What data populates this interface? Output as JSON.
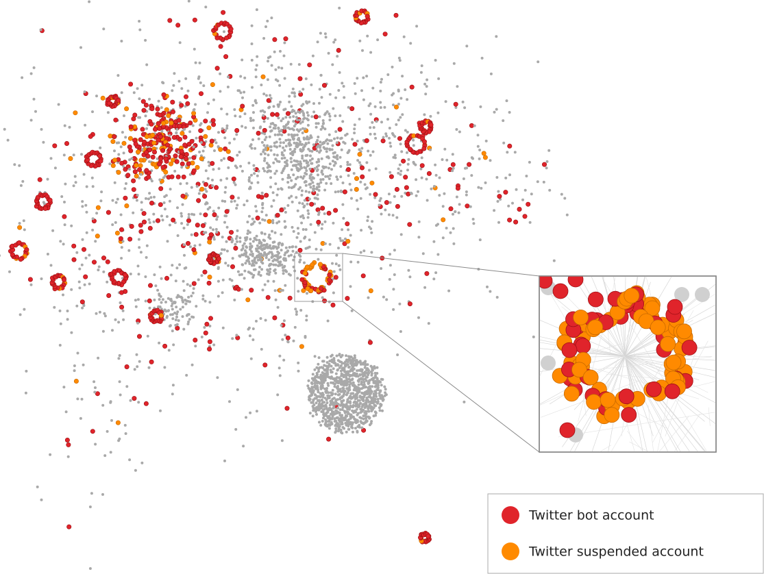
{
  "legend": {
    "items": [
      {
        "label": "Twitter bot account",
        "color": "#e0242b"
      },
      {
        "label": "Twitter suspended account",
        "color": "#ff8a00"
      }
    ]
  }
}
